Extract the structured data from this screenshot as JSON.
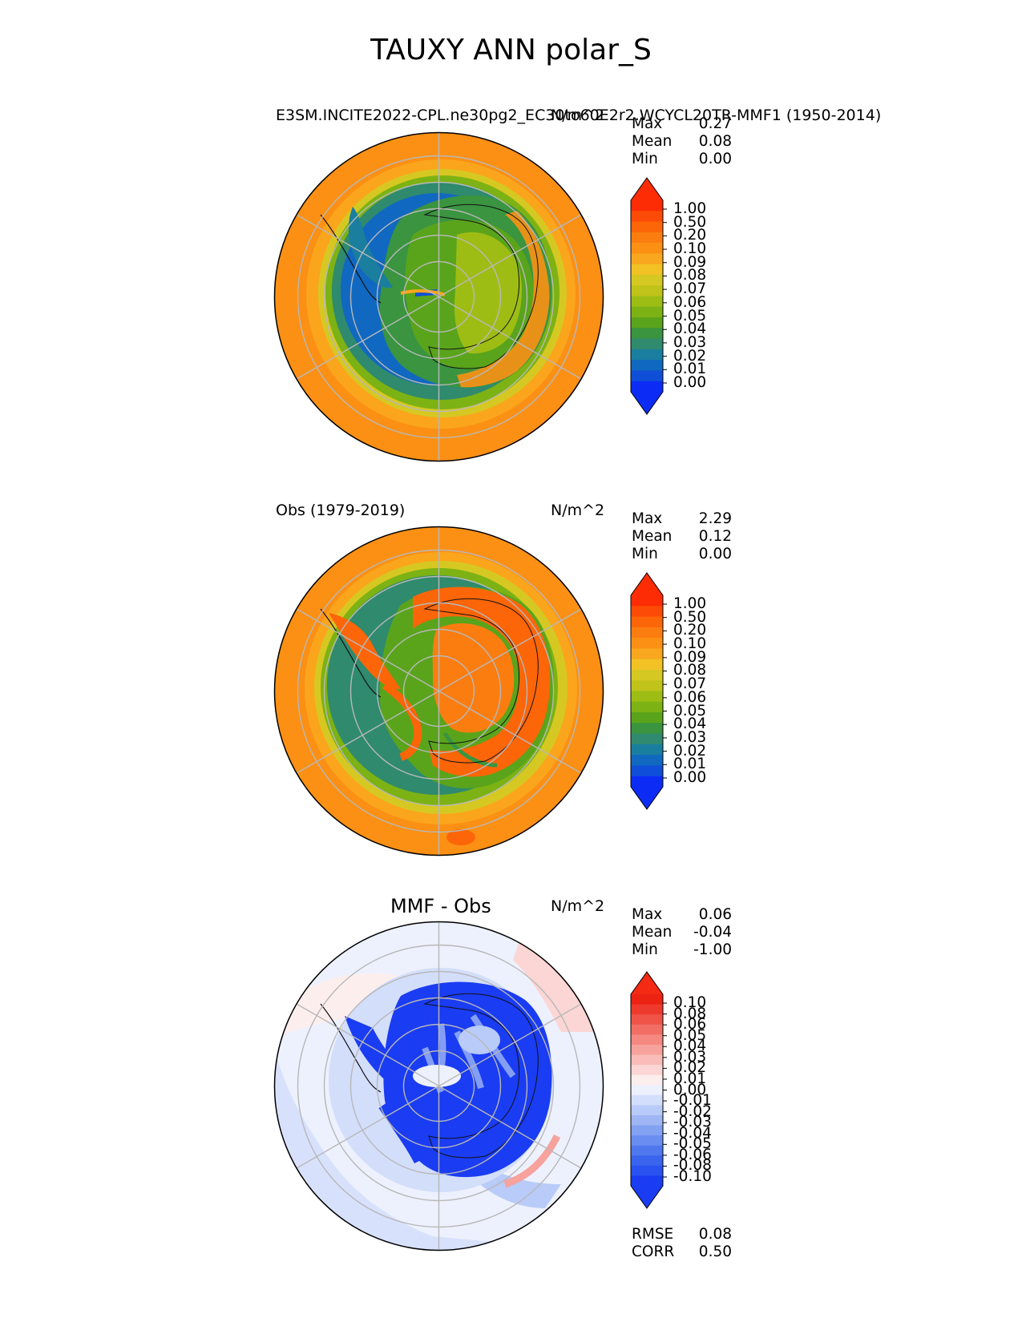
{
  "figure": {
    "title": "TAUXY ANN polar_S"
  },
  "panels": [
    {
      "id": "test",
      "title_left": "E3SM.INCITE2022-CPL.ne30pg2_EC30to60E2r2.WCYCL20TR-MMF1 (1950-2014)",
      "units": "N/m^2",
      "stats": [
        {
          "label": "Max",
          "value": "0.27"
        },
        {
          "label": "Mean",
          "value": "0.08"
        },
        {
          "label": "Min",
          "value": "0.00"
        }
      ],
      "colorbar": {
        "ticks": [
          "1.00",
          "0.50",
          "0.20",
          "0.10",
          "0.09",
          "0.08",
          "0.07",
          "0.06",
          "0.05",
          "0.04",
          "0.03",
          "0.02",
          "0.01",
          "0.00"
        ],
        "colors": [
          "#0c2cf5",
          "#0f4fd8",
          "#1168c0",
          "#1a7e9f",
          "#2f8a6e",
          "#3a9440",
          "#5aa41c",
          "#7cb214",
          "#9ebd14",
          "#c0c31a",
          "#d6c822",
          "#f2c224",
          "#f8a71e",
          "#fb9014",
          "#fb7d10",
          "#fc6508",
          "#fc4b06",
          "#fd2c04"
        ],
        "extend_low": "#0c2cf5",
        "extend_high": "#fd2c04"
      }
    },
    {
      "id": "ref",
      "title_left": "Obs (1979-2019)",
      "units": "N/m^2",
      "stats": [
        {
          "label": "Max",
          "value": "2.29"
        },
        {
          "label": "Mean",
          "value": "0.12"
        },
        {
          "label": "Min",
          "value": "0.00"
        }
      ],
      "colorbar": {
        "ticks": [
          "1.00",
          "0.50",
          "0.20",
          "0.10",
          "0.09",
          "0.08",
          "0.07",
          "0.06",
          "0.05",
          "0.04",
          "0.03",
          "0.02",
          "0.01",
          "0.00"
        ],
        "colors": [
          "#0c2cf5",
          "#0f4fd8",
          "#1168c0",
          "#1a7e9f",
          "#2f8a6e",
          "#3a9440",
          "#5aa41c",
          "#7cb214",
          "#9ebd14",
          "#c0c31a",
          "#d6c822",
          "#f2c224",
          "#f8a71e",
          "#fb9014",
          "#fb7d10",
          "#fc6508",
          "#fc4b06",
          "#fd2c04"
        ],
        "extend_low": "#0c2cf5",
        "extend_high": "#fd2c04"
      }
    },
    {
      "id": "diff",
      "title_center": "MMF - Obs",
      "units": "N/m^2",
      "stats": [
        {
          "label": "Max",
          "value": "0.06"
        },
        {
          "label": "Mean",
          "value": "-0.04"
        },
        {
          "label": "Min",
          "value": "-1.00"
        }
      ],
      "colorbar": {
        "ticks": [
          "0.10",
          "0.08",
          "0.06",
          "0.05",
          "0.04",
          "0.03",
          "0.02",
          "0.01",
          "0.00",
          "-0.01",
          "-0.02",
          "-0.03",
          "-0.04",
          "-0.05",
          "-0.06",
          "-0.08",
          "-0.10"
        ],
        "colors": [
          "#1a3cf2",
          "#2a52f0",
          "#3a64ee",
          "#5078ee",
          "#6a8ef0",
          "#84a2f2",
          "#9fb6f5",
          "#b9cbf8",
          "#d3defb",
          "#edf1fd",
          "#fdeeee",
          "#fbd6d4",
          "#f9bcb8",
          "#f7a29c",
          "#f58880",
          "#f26e64",
          "#f05448",
          "#ee3a2c",
          "#ec2212"
        ],
        "extend_low": "#1a3cf2",
        "extend_high": "#f42a14"
      },
      "footer_stats": [
        {
          "label": "RMSE",
          "value": "0.08"
        },
        {
          "label": "CORR",
          "value": "0.50"
        }
      ]
    }
  ]
}
